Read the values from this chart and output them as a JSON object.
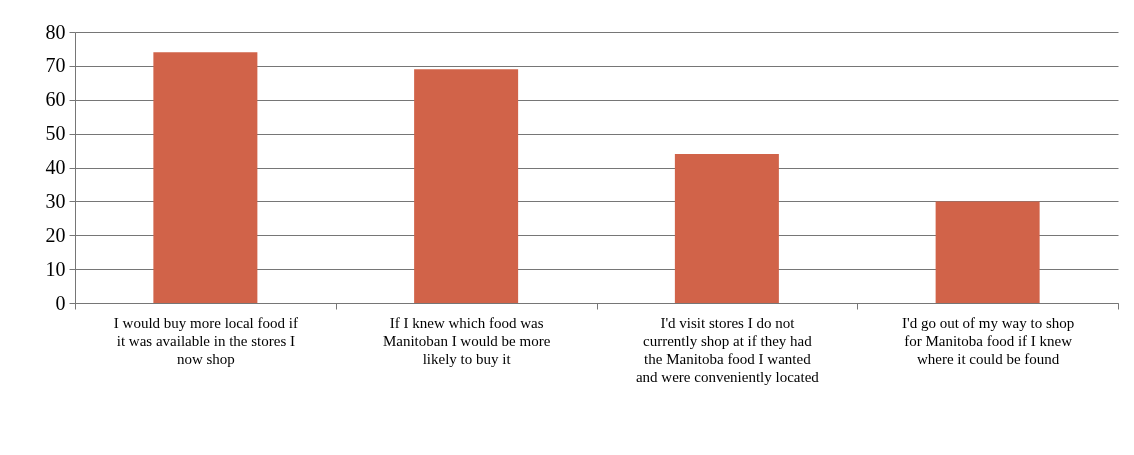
{
  "chart_data": {
    "type": "bar",
    "categories": [
      "I would buy more local food if it was available in the stores I now shop",
      "If I knew which food was Manitoban I would be more likely to buy it",
      "I'd visit stores I do not currently shop at if they had the Manitoba food I wanted and were conveniently located",
      "I'd go out of my way to shop for Manitoba food if I knew where it could be found"
    ],
    "values": [
      74,
      69,
      44,
      30
    ],
    "color": "#d16349",
    "ylim": [
      0,
      80
    ],
    "yticks": [
      0,
      10,
      20,
      30,
      40,
      50,
      60,
      70,
      80
    ],
    "grid": "y"
  }
}
